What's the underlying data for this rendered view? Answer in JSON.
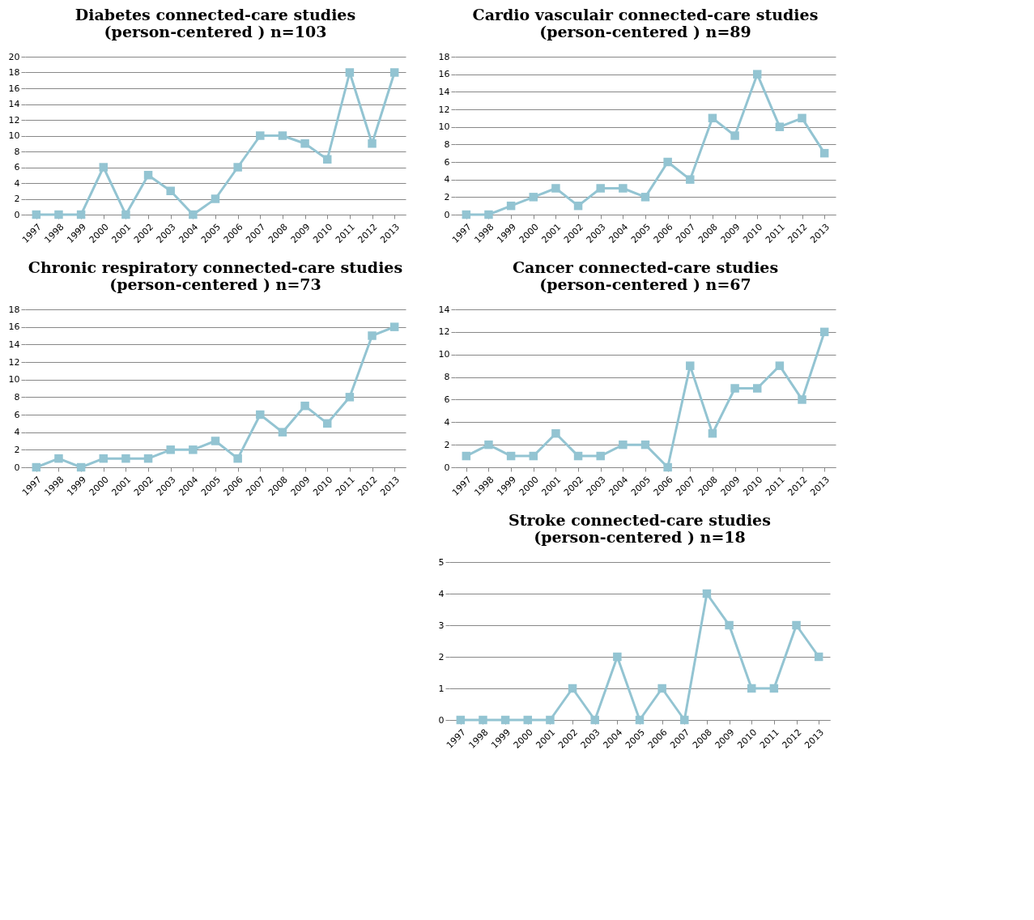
{
  "chart_data": [
    {
      "type": "line",
      "title": "Diabetes connected-care studies\n(person-centered ) n=103",
      "categories": [
        "1997",
        "1998",
        "1999",
        "2000",
        "2001",
        "2002",
        "2003",
        "2004",
        "2005",
        "2006",
        "2007",
        "2008",
        "2009",
        "2010",
        "2011",
        "2012",
        "2013"
      ],
      "values": [
        0,
        0,
        0,
        6,
        0,
        5,
        3,
        0,
        2,
        6,
        10,
        10,
        9,
        7,
        18,
        9,
        18
      ],
      "color": "#93c4d2",
      "ylim": [
        0,
        20
      ],
      "yticks": [
        0,
        2,
        4,
        6,
        8,
        10,
        12,
        14,
        16,
        18,
        20
      ],
      "grid": "y",
      "marker": "square",
      "line_style": "solid"
    },
    {
      "type": "line",
      "title": "Cardio vasculair connected-care studies\n(person-centered ) n=89",
      "categories": [
        "1997",
        "1998",
        "1999",
        "2000",
        "2001",
        "2002",
        "2003",
        "2004",
        "2005",
        "2006",
        "2007",
        "2008",
        "2009",
        "2010",
        "2011",
        "2012",
        "2013"
      ],
      "values": [
        0,
        0,
        1,
        2,
        3,
        1,
        3,
        3,
        2,
        6,
        4,
        11,
        9,
        16,
        10,
        11,
        7
      ],
      "color": "#93c4d2",
      "ylim": [
        0,
        18
      ],
      "yticks": [
        0,
        2,
        4,
        6,
        8,
        10,
        12,
        14,
        16,
        18
      ],
      "grid": "y",
      "marker": "square",
      "line_style": "solid"
    },
    {
      "type": "line",
      "title": "Chronic respiratory connected-care studies\n(person-centered ) n=73",
      "categories": [
        "1997",
        "1998",
        "1999",
        "2000",
        "2001",
        "2002",
        "2003",
        "2004",
        "2005",
        "2006",
        "2007",
        "2008",
        "2009",
        "2010",
        "2011",
        "2012",
        "2013"
      ],
      "values": [
        0,
        1,
        0,
        1,
        1,
        1,
        2,
        2,
        3,
        1,
        6,
        4,
        7,
        5,
        8,
        15,
        16
      ],
      "color": "#93c4d2",
      "ylim": [
        0,
        18
      ],
      "yticks": [
        0,
        2,
        4,
        6,
        8,
        10,
        12,
        14,
        16,
        18
      ],
      "grid": "y",
      "marker": "square",
      "line_style": "solid"
    },
    {
      "type": "line",
      "title": "Cancer connected-care studies\n(person-centered ) n=67",
      "categories": [
        "1997",
        "1998",
        "1999",
        "2000",
        "2001",
        "2002",
        "2003",
        "2004",
        "2005",
        "2006",
        "2007",
        "2008",
        "2009",
        "2010",
        "2011",
        "2012",
        "2013"
      ],
      "values": [
        1,
        2,
        1,
        1,
        3,
        1,
        1,
        2,
        2,
        0,
        9,
        3,
        7,
        7,
        9,
        6,
        12
      ],
      "color": "#93c4d2",
      "ylim": [
        0,
        14
      ],
      "yticks": [
        0,
        2,
        4,
        6,
        8,
        10,
        12,
        14
      ],
      "grid": "y",
      "marker": "square",
      "line_style": "solid"
    },
    {
      "type": "line",
      "title": "Stroke connected-care studies\n(person-centered ) n=18",
      "categories": [
        "1997",
        "1998",
        "1999",
        "2000",
        "2001",
        "2002",
        "2003",
        "2004",
        "2005",
        "2006",
        "2007",
        "2008",
        "2009",
        "2010",
        "2011",
        "2012",
        "2013"
      ],
      "values": [
        0,
        0,
        0,
        0,
        0,
        1,
        0,
        2,
        0,
        1,
        0,
        4,
        3,
        1,
        1,
        3,
        2
      ],
      "color": "#93c4d2",
      "ylim": [
        0,
        5
      ],
      "yticks": [
        0,
        1,
        2,
        3,
        4,
        5
      ],
      "grid": "y",
      "marker": "square",
      "line_style": "solid"
    }
  ]
}
